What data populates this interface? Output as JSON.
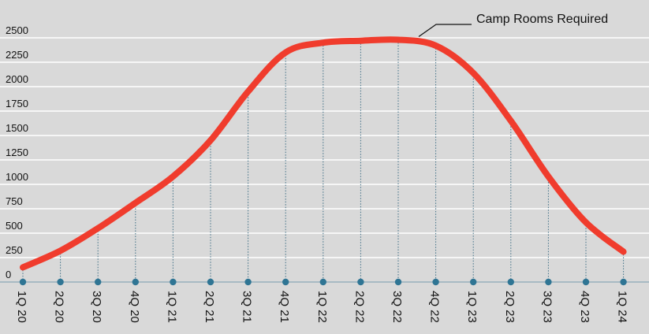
{
  "chart_data": {
    "type": "line",
    "title": "",
    "xlabel": "",
    "ylabel": "",
    "ylim": [
      0,
      2500
    ],
    "yticks": [
      0,
      250,
      500,
      750,
      1000,
      1250,
      1500,
      1750,
      2000,
      2250,
      2500
    ],
    "grid": true,
    "categories": [
      "1Q 20",
      "2Q 20",
      "3Q 20",
      "4Q 20",
      "1Q 21",
      "2Q 21",
      "3Q 21",
      "4Q 21",
      "1Q 22",
      "2Q 22",
      "3Q 22",
      "4Q 22",
      "1Q 23",
      "2Q 23",
      "3Q 23",
      "4Q 23",
      "1Q 24"
    ],
    "series": [
      {
        "name": "Camp Rooms Required",
        "color": "#f03c2d",
        "values": [
          150,
          320,
          550,
          810,
          1080,
          1450,
          1950,
          2350,
          2450,
          2470,
          2480,
          2420,
          2140,
          1650,
          1080,
          610,
          310
        ]
      }
    ],
    "annotation": "Camp Rooms Required",
    "colors": {
      "background": "#d9d9d9",
      "gridline": "#ffffff",
      "marker": "#2f7594",
      "line": "#f03c2d"
    }
  }
}
